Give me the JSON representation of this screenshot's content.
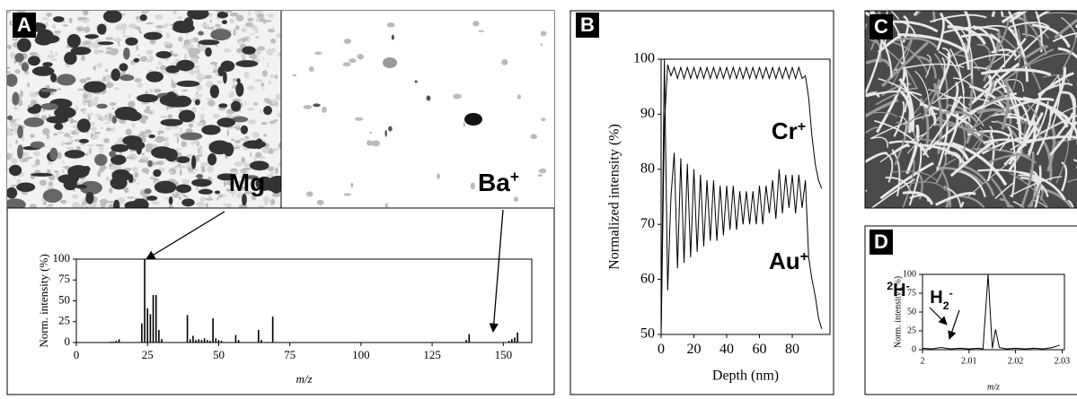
{
  "chart_data": [
    {
      "type": "bar",
      "panel": "A",
      "x_label": "m/z",
      "y_label": "Norm. intensity (%)",
      "color": "#000000",
      "x": [
        12,
        13,
        14,
        15,
        23,
        24,
        25,
        26,
        27,
        28,
        29,
        30,
        39,
        40,
        41,
        42,
        43,
        44,
        45,
        46,
        47,
        48,
        49,
        50,
        51,
        56,
        57,
        64,
        65,
        69,
        137,
        138,
        152,
        153,
        154,
        155
      ],
      "values": [
        1,
        1,
        2,
        4,
        23,
        100,
        41,
        34,
        57,
        57,
        15,
        4,
        33,
        4,
        8,
        3,
        4,
        3,
        5,
        3,
        2,
        29,
        5,
        3,
        2,
        9,
        3,
        15,
        3,
        31,
        3,
        10,
        2,
        4,
        6,
        12
      ],
      "xlim": [
        0,
        160
      ],
      "xticks": [
        0,
        25,
        50,
        75,
        100,
        125,
        150
      ],
      "ylim": [
        0,
        100
      ],
      "yticks": [
        0,
        25,
        50,
        75,
        100
      ],
      "annotations": [
        {
          "parts": [
            [
              "Mg",
              "normal"
            ]
          ]
        },
        {
          "parts": [
            [
              "Ba",
              "normal"
            ],
            [
              "+",
              "sup"
            ]
          ]
        }
      ]
    },
    {
      "type": "line",
      "panel": "B",
      "x_label": "Depth (nm)",
      "y_label": "Normalized intensity (%)",
      "x": [
        0,
        2,
        4,
        6,
        8,
        10,
        12,
        14,
        16,
        18,
        20,
        22,
        24,
        26,
        28,
        30,
        32,
        34,
        36,
        38,
        40,
        42,
        44,
        46,
        48,
        50,
        52,
        54,
        56,
        58,
        60,
        62,
        64,
        66,
        68,
        70,
        72,
        74,
        76,
        78,
        80,
        82,
        84,
        86,
        88,
        90,
        92,
        94,
        96,
        98
      ],
      "series": [
        {
          "name": "Cr+",
          "color": "#000000",
          "values": [
            50,
            88,
            99,
            97,
            98.5,
            96.5,
            98.5,
            96.5,
            98.5,
            96.5,
            98.5,
            96.5,
            98.5,
            96.5,
            98.5,
            96.5,
            98.5,
            96.5,
            98.5,
            96.5,
            98.5,
            96.5,
            98.5,
            96.5,
            98.5,
            96.5,
            98.5,
            96.5,
            98.5,
            96.5,
            98.5,
            96.5,
            98.5,
            96.5,
            98.5,
            96.5,
            98.5,
            96.5,
            98.5,
            96.5,
            98.5,
            96.5,
            98.5,
            96.5,
            97,
            93,
            86,
            81,
            78,
            76.5
          ]
        },
        {
          "name": "Au+",
          "color": "#000000",
          "values": [
            50,
            100,
            58,
            75,
            83,
            62,
            82,
            63,
            81,
            64,
            80,
            65,
            79,
            66,
            78,
            67,
            78,
            67,
            77,
            68,
            77,
            69,
            77,
            69,
            76,
            70,
            76,
            70,
            76,
            70,
            77,
            70,
            77,
            72,
            78,
            71,
            80,
            72,
            79,
            73,
            79,
            72,
            79,
            73,
            78,
            64,
            60,
            57,
            53,
            51
          ]
        }
      ],
      "xlim": [
        0,
        103
      ],
      "xticks": [
        0,
        20,
        40,
        60,
        80
      ],
      "ylim": [
        50,
        100
      ],
      "yticks": [
        50,
        60,
        70,
        80,
        90,
        100
      ],
      "annotations": [
        {
          "parts": [
            [
              "Cr",
              "normal"
            ],
            [
              "+",
              "sup"
            ]
          ]
        },
        {
          "parts": [
            [
              "Au",
              "normal"
            ],
            [
              "+",
              "sup"
            ]
          ]
        }
      ]
    },
    {
      "type": "line",
      "panel": "D",
      "x_label": "m/z",
      "y_label": "Norm. intensity (%)",
      "color": "#000000",
      "x": [
        2.0,
        2.002,
        2.004,
        2.006,
        2.008,
        2.01,
        2.012,
        2.013,
        2.0141,
        2.015,
        2.0157,
        2.0165,
        2.018,
        2.02,
        2.022,
        2.024,
        2.026,
        2.028,
        2.0295
      ],
      "values": [
        2,
        1,
        3,
        1,
        2,
        1,
        2,
        1,
        100,
        2,
        27,
        3,
        1,
        2,
        1,
        2,
        1,
        3,
        6
      ],
      "xlim": [
        2,
        2.0305
      ],
      "xticks": [
        2,
        2.01,
        2.02,
        2.03
      ],
      "ylim": [
        0,
        100
      ],
      "yticks": [
        0,
        25,
        50,
        75,
        100
      ],
      "annotations": [
        {
          "parts": [
            [
              "2",
              "sup"
            ],
            [
              "H",
              "normal"
            ],
            [
              "-",
              "sup"
            ]
          ]
        },
        {
          "parts": [
            [
              "H",
              "normal"
            ],
            [
              "2",
              "sub"
            ],
            [
              "-",
              "sup"
            ]
          ]
        }
      ]
    }
  ],
  "panel_c": {
    "label": "C"
  }
}
